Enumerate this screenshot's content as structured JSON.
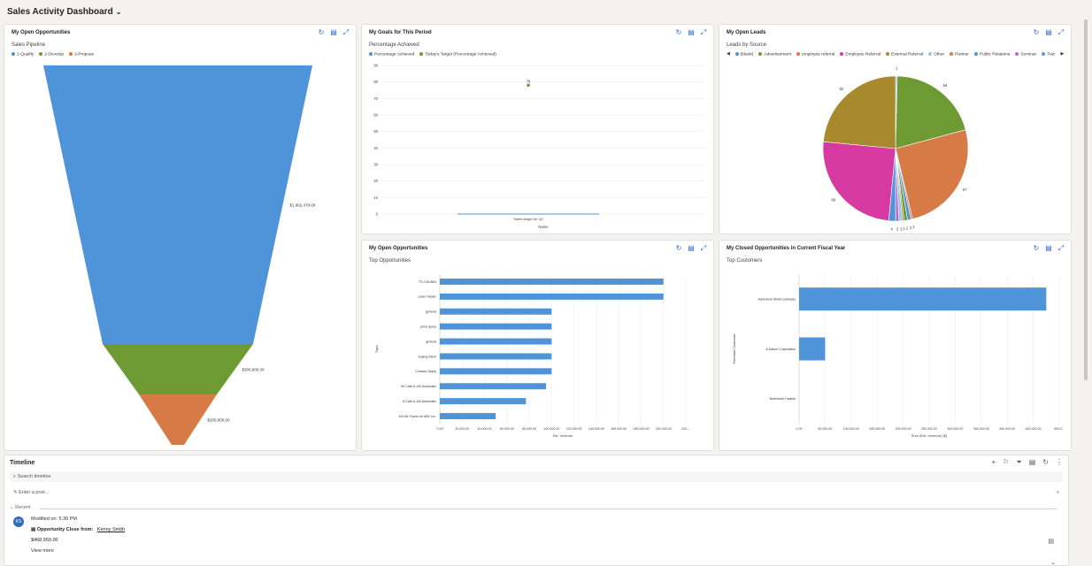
{
  "header": {
    "title": "Sales Activity Dashboard"
  },
  "cards": {
    "funnel": {
      "title": "My Open Opportunities",
      "subtitle": "Sales Pipeline",
      "legend": [
        {
          "label": "1-Qualify",
          "color": "#4f93d8"
        },
        {
          "label": "2-Develop",
          "color": "#6e9a34"
        },
        {
          "label": "3-Propose",
          "color": "#d67a46"
        }
      ]
    },
    "goals": {
      "title": "My Goals for This Period",
      "subtitle": "Percentage Achieved",
      "legend": [
        {
          "label": "Percentage Achieved",
          "color": "#4f93d8"
        },
        {
          "label": "Today's Target (Percentage Achieved)",
          "color": "#6e9a34"
        }
      ]
    },
    "leads": {
      "title": "My Open Leads",
      "subtitle": "Leads by Source",
      "legend": [
        {
          "label": "(blank)",
          "color": "#4f93d8"
        },
        {
          "label": "Advertisement",
          "color": "#6e9a34"
        },
        {
          "label": "employee referral",
          "color": "#d67a46"
        },
        {
          "label": "Employee Referral",
          "color": "#d63aa0"
        },
        {
          "label": "External Referral",
          "color": "#a88a2e"
        },
        {
          "label": "Other",
          "color": "#9ac4e8"
        },
        {
          "label": "Partner",
          "color": "#d67a46"
        },
        {
          "label": "Public Relations",
          "color": "#4f93d8"
        },
        {
          "label": "Seminar",
          "color": "#b070c8"
        },
        {
          "label": "Trac",
          "color": "#5a9ad8"
        }
      ]
    },
    "top_opps": {
      "title": "My Open Opportunities",
      "subtitle": "Top Opportunities"
    },
    "closed": {
      "title": "My Closed Opportunities in Current Fiscal Year",
      "subtitle": "Top Customers"
    }
  },
  "chart_data": [
    {
      "type": "funnel",
      "title": "Sales Pipeline",
      "categories": [
        "1-Qualify",
        "2-Develop",
        "3-Propose"
      ],
      "values": [
        1902478,
        300000,
        200000
      ],
      "labels": [
        "$1,902,478.00",
        "$300,000.00",
        "$200,000.00"
      ]
    },
    {
      "type": "scatter",
      "title": "Percentage Achieved",
      "categories": [
        "Sales target for Q2"
      ],
      "series": [
        {
          "name": "Percentage Achieved",
          "values": [
            0
          ]
        },
        {
          "name": "Today's Target (Percentage Achieved)",
          "values": [
            78
          ]
        }
      ],
      "point_label": "78",
      "ylim": [
        0,
        90
      ],
      "yticks": [
        "90",
        "80",
        "70",
        "60",
        "50",
        "40",
        "30",
        "20",
        "10",
        "0"
      ],
      "xlabel": "Name"
    },
    {
      "type": "pie",
      "title": "Leads by Source",
      "slices": [
        {
          "label": "1",
          "value": 1,
          "color": "#9ac4e8"
        },
        {
          "label": "54",
          "value": 54,
          "color": "#6e9a34"
        },
        {
          "label": "67",
          "value": 67,
          "color": "#d67a46"
        },
        {
          "label": "1",
          "value": 1,
          "color": "#d67a46"
        },
        {
          "label": "2",
          "value": 2,
          "color": "#4f93d8"
        },
        {
          "label": "2",
          "value": 2,
          "color": "#6e9a34"
        },
        {
          "label": "1",
          "value": 1,
          "color": "#a88a2e"
        },
        {
          "label": "2",
          "value": 2,
          "color": "#9ac4e8"
        },
        {
          "label": "2",
          "value": 2,
          "color": "#b070c8"
        },
        {
          "label": "4",
          "value": 4,
          "color": "#4f93d8"
        },
        {
          "label": "66",
          "value": 66,
          "color": "#d63aa0"
        },
        {
          "label": "62",
          "value": 62,
          "color": "#a88a2e"
        }
      ]
    },
    {
      "type": "bar",
      "title": "Top Opportunities",
      "categories": [
        "TS-745-WIN",
        "Laser Heater",
        "general",
        "price query",
        "general",
        "buying intent",
        "Contoso Opply",
        "50 Café A-100 Automatic",
        "8 Café A-100 Automatic",
        "100 Air Fryers for ABC Inc."
      ],
      "values": [
        200000,
        200000,
        100000,
        100000,
        100000,
        100000,
        100000,
        95000,
        77000,
        50000
      ],
      "xticks": [
        "0.00",
        "20,000.00",
        "40,000.00",
        "60,000.00",
        "80,000.00",
        "100,000.00",
        "120,000.00",
        "140,000.00",
        "160,000.00",
        "180,000.00",
        "200,000.00",
        "220,..."
      ],
      "xlabel": "Est. revenue",
      "ylabel": "Topic",
      "xlim": [
        0,
        220000
      ]
    },
    {
      "type": "bar",
      "title": "Top Customers",
      "categories": [
        "Adventure Works (sample)",
        "A Datum Corporation",
        "Northwind Traders"
      ],
      "values": [
        475000,
        50000,
        0
      ],
      "xticks": [
        "0.00",
        "50,000.00",
        "100,000.00",
        "150,000.00",
        "200,000.00",
        "250,000.00",
        "300,000.00",
        "350,000.00",
        "400,000.00",
        "450,000.00",
        "550,0..."
      ],
      "xlabel": "Sum (Est. revenue) ($)",
      "ylabel": "Potential Customer",
      "xlim": [
        0,
        500000
      ]
    }
  ],
  "timeline": {
    "title": "Timeline",
    "search_placeholder": "Search timeline",
    "post_placeholder": "Enter a post...",
    "recent_label": "Recent",
    "item": {
      "avatar": "KS",
      "modified": "Modified on: 5:30 PM",
      "heading": "Opportunity Close from:",
      "who": "Kenny Smith",
      "amount": "$468,950.00",
      "more": "View more"
    }
  }
}
